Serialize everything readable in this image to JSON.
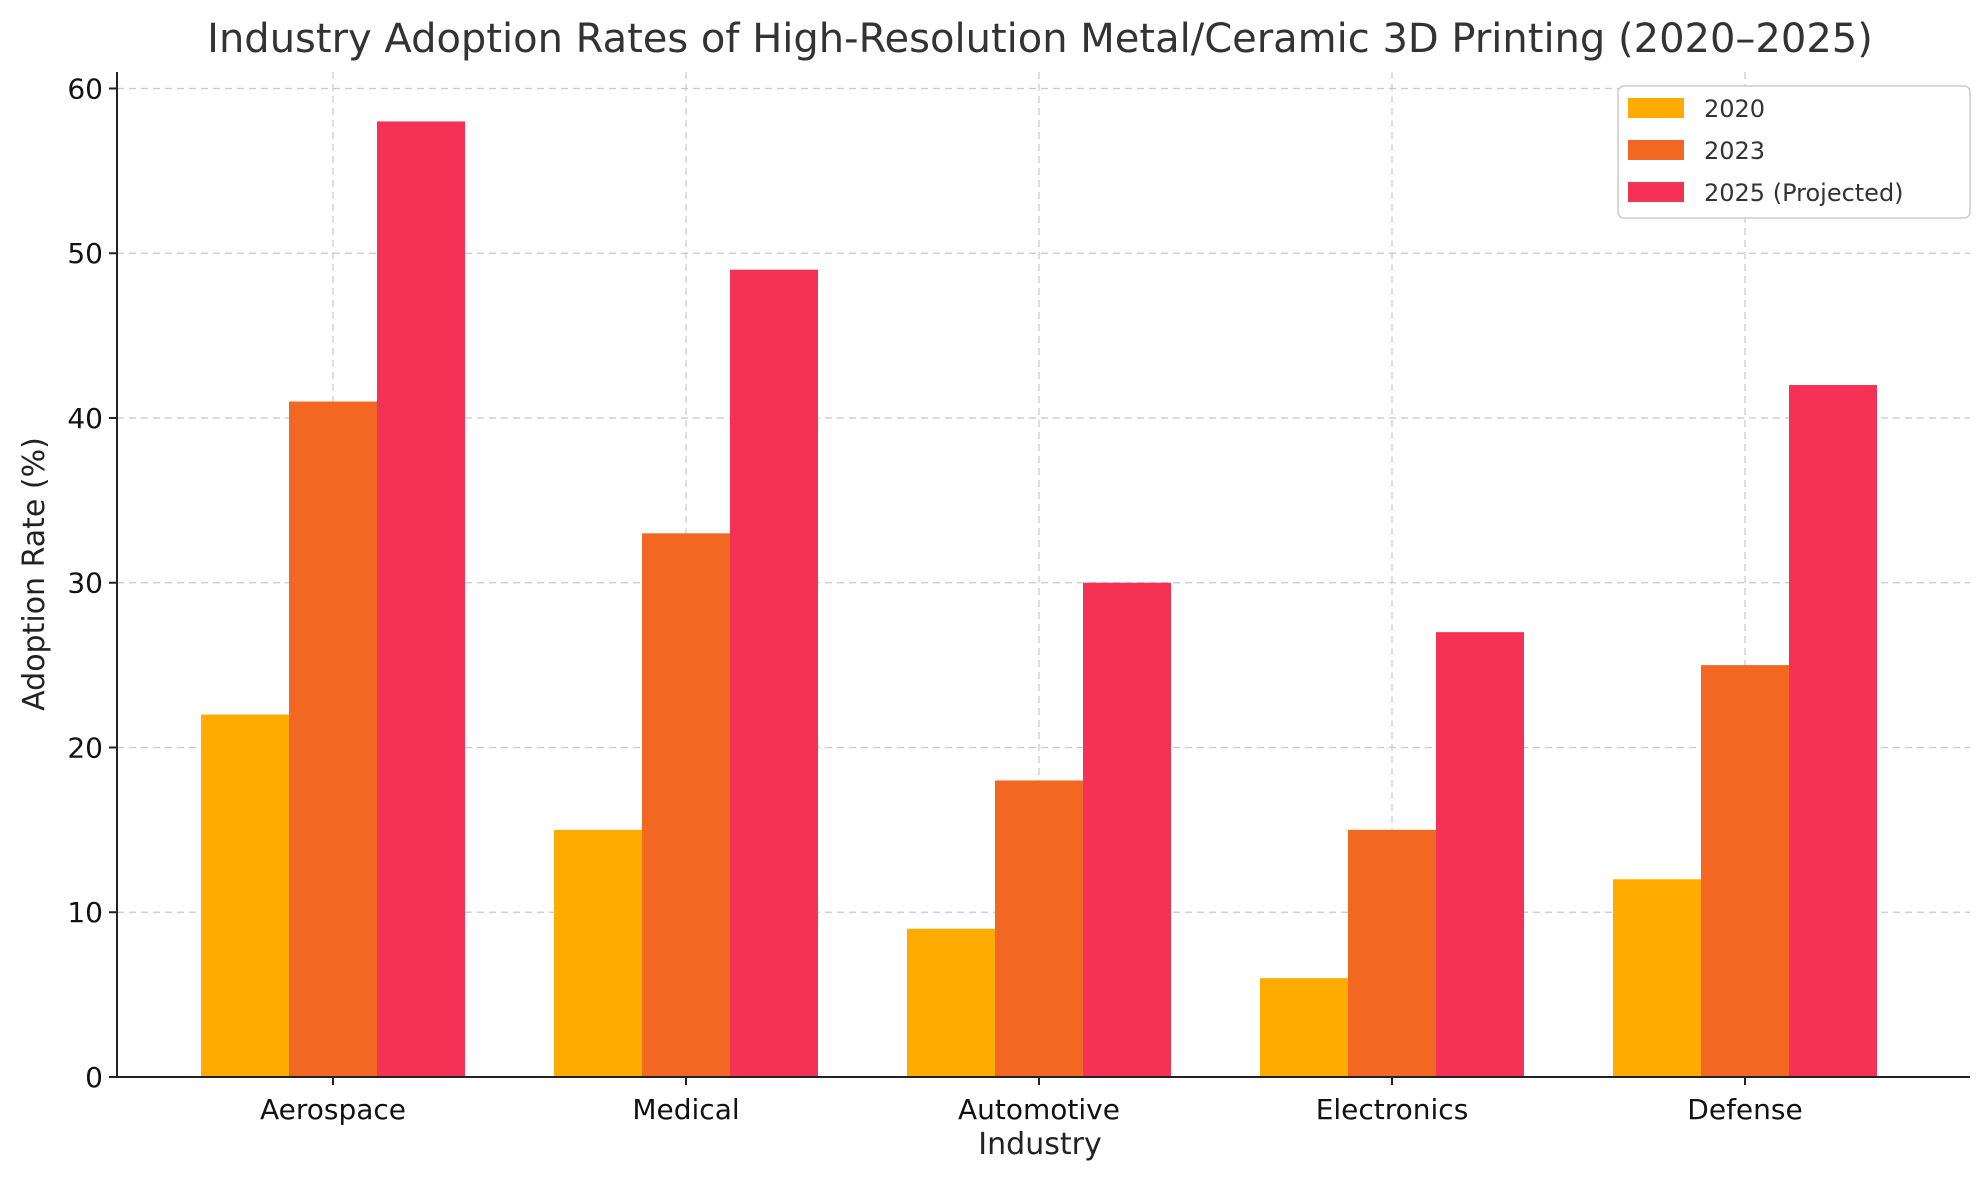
{
  "chart_data": {
    "type": "bar",
    "title": "Industry Adoption Rates of High-Resolution Metal/Ceramic 3D Printing (2020–2025)",
    "xlabel": "Industry",
    "ylabel": "Adoption Rate (%)",
    "categories": [
      "Aerospace",
      "Medical",
      "Automotive",
      "Electronics",
      "Defense"
    ],
    "series": [
      {
        "name": "2020",
        "color": "#FFAB00",
        "values": [
          22,
          15,
          9,
          6,
          12
        ]
      },
      {
        "name": "2023",
        "color": "#F26722",
        "values": [
          41,
          33,
          18,
          15,
          25
        ]
      },
      {
        "name": "2025 (Projected)",
        "color": "#F53155",
        "values": [
          58,
          49,
          30,
          27,
          42
        ]
      }
    ],
    "ylim": [
      0,
      61
    ],
    "yticks": [
      0,
      10,
      20,
      30,
      40,
      50,
      60
    ],
    "grid": true,
    "legend_position": "top-right"
  }
}
